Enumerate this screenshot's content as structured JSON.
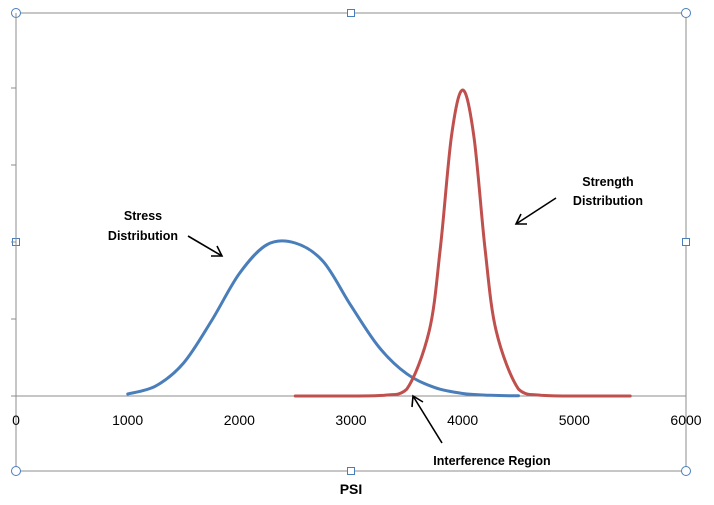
{
  "chart_data": {
    "type": "line",
    "title": "",
    "xlabel": "PSI",
    "ylabel": "",
    "xlim": [
      0,
      6000
    ],
    "ylim": [
      0,
      4
    ],
    "x_ticks": [
      "0",
      "1000",
      "2000",
      "3000",
      "4000",
      "5000",
      "6000"
    ],
    "grid": false,
    "legend": "none",
    "series": [
      {
        "color": "#4a7ebb",
        "x": [
          1000,
          1250,
          1500,
          1750,
          2000,
          2250,
          2500,
          2750,
          3000,
          3250,
          3500,
          3750,
          4000,
          4250,
          4500
        ],
        "y": [
          0.026,
          0.13,
          0.43,
          0.98,
          1.6,
          1.98,
          2.0,
          1.76,
          1.18,
          0.64,
          0.29,
          0.11,
          0.033,
          0.009,
          0.002
        ]
      },
      {
        "color": "#c0504d",
        "x": [
          2500,
          3000,
          3300,
          3500,
          3700,
          3800,
          3900,
          4000,
          4100,
          4200,
          4300,
          4500,
          4700,
          5000,
          5500
        ],
        "y": [
          0,
          0,
          0.01,
          0.09,
          0.85,
          1.93,
          3.4,
          4.0,
          3.4,
          1.93,
          0.85,
          0.09,
          0.01,
          0,
          0
        ]
      }
    ],
    "annotations": [
      {
        "lines": [
          "Stress",
          "Distribution"
        ]
      },
      {
        "lines": [
          "Strength",
          "Distribution"
        ]
      },
      {
        "lines": [
          "Interference Region"
        ]
      }
    ]
  }
}
